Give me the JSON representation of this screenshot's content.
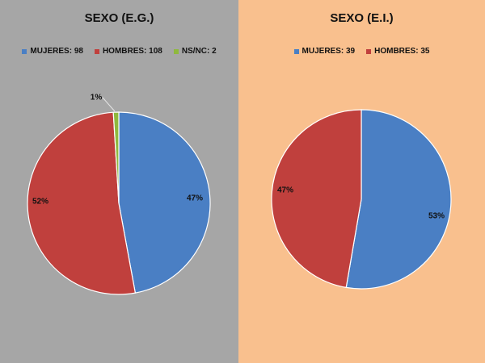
{
  "chart_data": [
    {
      "type": "pie",
      "title": "SEXO (E.G.)",
      "series": [
        {
          "name": "MUJERES: 98",
          "value": 98,
          "label": "47%",
          "color": "#4a7fc4"
        },
        {
          "name": "HOMBRES: 108",
          "value": 108,
          "label": "52%",
          "color": "#c0403d"
        },
        {
          "name": "NS/NC: 2",
          "value": 2,
          "label": "1%",
          "color": "#8fb93e"
        }
      ],
      "legend_position": "top"
    },
    {
      "type": "pie",
      "title": "SEXO (E.I.)",
      "series": [
        {
          "name": "MUJERES: 39",
          "value": 39,
          "label": "53%",
          "color": "#4a7fc4"
        },
        {
          "name": "HOMBRES: 35",
          "value": 35,
          "label": "47%",
          "color": "#c0403d"
        }
      ],
      "legend_position": "top"
    }
  ]
}
